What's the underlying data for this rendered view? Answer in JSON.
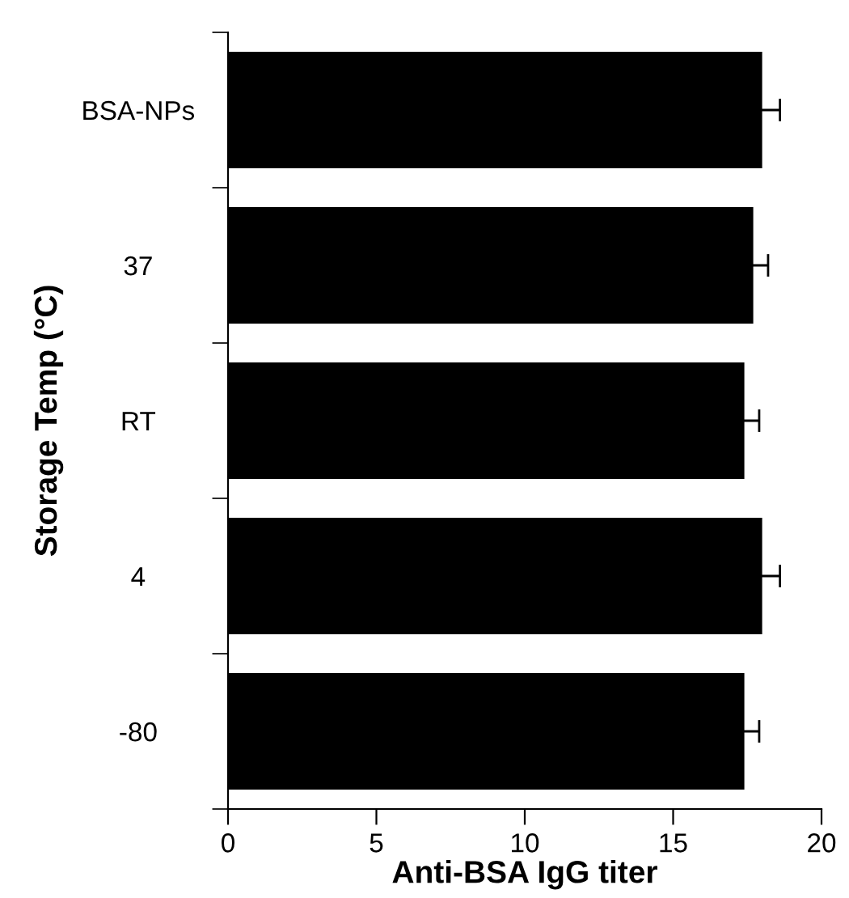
{
  "chart_data": {
    "type": "bar",
    "orientation": "horizontal",
    "xlabel": "Anti-BSA IgG titer",
    "ylabel": "Storage Temp (°C)",
    "categories": [
      "BSA-NPs",
      "37",
      "RT",
      "4",
      "-80"
    ],
    "series": [
      {
        "color": "#000000",
        "values": [
          18.0,
          17.7,
          17.4,
          18.0,
          17.4
        ],
        "errors": [
          0.6,
          0.5,
          0.5,
          0.6,
          0.5
        ]
      }
    ],
    "xlim": [
      0,
      20
    ],
    "xticks": [
      0,
      5,
      10,
      15,
      20
    ],
    "grid": false,
    "legend": false
  }
}
